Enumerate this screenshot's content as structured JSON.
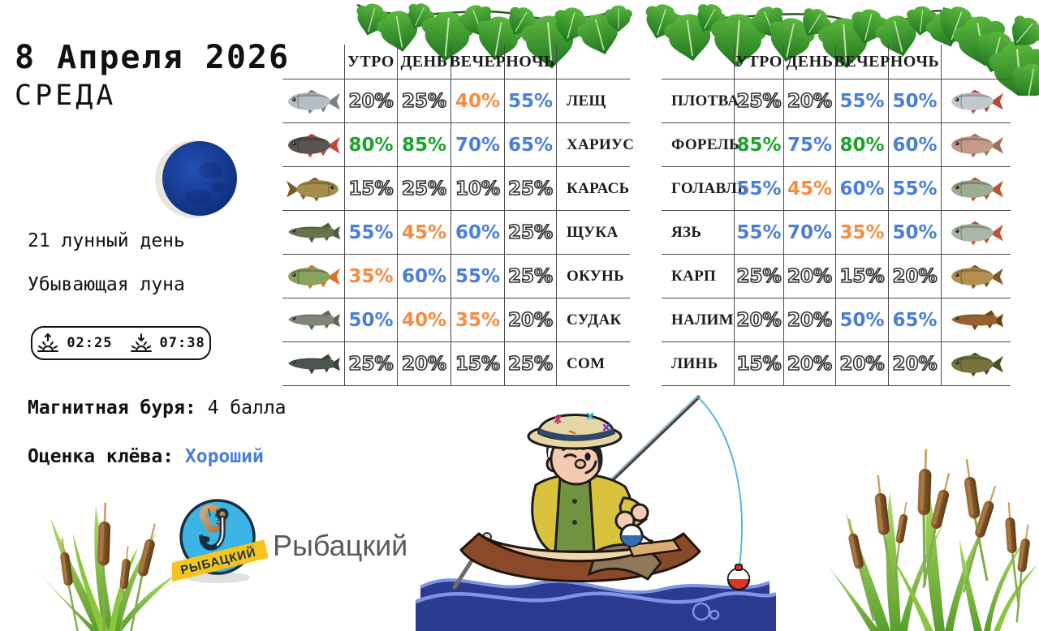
{
  "header": {
    "date": "8 Апреля 2026",
    "weekday": "СРЕДА"
  },
  "moon": {
    "lunar_day": "21 лунный день",
    "phase": "Убывающая луна",
    "rise_time": "02:25",
    "set_time": "07:38",
    "rise_icon": "sunrise-arrow-up-icon",
    "set_icon": "sunset-arrow-down-icon",
    "moon_color": "#123c96"
  },
  "info": {
    "storm_label": "Магнитная буря:",
    "storm_value": "4 балла",
    "bite_label": "Оценка клёва:",
    "bite_value": "Хороший"
  },
  "brand": {
    "name": "Рыбацкий",
    "badge_text": "РЫБАЦКИЙ",
    "badge_blue": "#3cb4e5",
    "badge_yellow": "#f6c41c"
  },
  "colors": {
    "high": "#1ca32c",
    "mid": "#4b7ed9",
    "low": "#f78b42",
    "poor_outline": "#333333"
  },
  "tables": {
    "time_headers": [
      "УТРО",
      "ДЕНЬ",
      "ВЕЧЕР",
      "НОЧЬ"
    ],
    "time_keys": [
      "morning",
      "day",
      "evening",
      "night"
    ],
    "left": [
      {
        "fish": "ЛЕЩ",
        "values": [
          20,
          25,
          40,
          55
        ],
        "type": "std",
        "body": "#b6bec5",
        "fin": "#77828a",
        "flip": false
      },
      {
        "fish": "ХАРИУС",
        "values": [
          80,
          85,
          70,
          65
        ],
        "type": "std",
        "body": "#5a5550",
        "fin": "#c9473a",
        "flip": false
      },
      {
        "fish": "КАРАСЬ",
        "values": [
          15,
          25,
          10,
          25
        ],
        "type": "std",
        "body": "#a38d4a",
        "fin": "#7a5a28",
        "flip": true
      },
      {
        "fish": "ЩУКА",
        "values": [
          55,
          45,
          60,
          25
        ],
        "type": "long",
        "body": "#66734c",
        "fin": "#4e5a38",
        "flip": false
      },
      {
        "fish": "ОКУНЬ",
        "values": [
          35,
          60,
          55,
          25
        ],
        "type": "std",
        "body": "#89a35e",
        "fin": "#e06c2a",
        "flip": false
      },
      {
        "fish": "СУДАК",
        "values": [
          50,
          40,
          35,
          20
        ],
        "type": "long",
        "body": "#7e8678",
        "fin": "#5d655a",
        "flip": false
      },
      {
        "fish": "СОМ",
        "values": [
          25,
          20,
          15,
          25
        ],
        "type": "long",
        "body": "#4d564e",
        "fin": "#39413a",
        "flip": false
      }
    ],
    "right": [
      {
        "fish": "ПЛОТВА",
        "values": [
          25,
          20,
          55,
          50
        ],
        "type": "std",
        "body": "#c2c9cd",
        "fin": "#c04333",
        "flip": false
      },
      {
        "fish": "ФОРЕЛЬ",
        "values": [
          85,
          75,
          80,
          60
        ],
        "type": "std",
        "body": "#c59a88",
        "fin": "#9c6f5e",
        "flip": false
      },
      {
        "fish": "ГОЛАВЛЬ",
        "values": [
          55,
          45,
          60,
          55
        ],
        "type": "std",
        "body": "#9cab92",
        "fin": "#b8542f",
        "flip": false
      },
      {
        "fish": "ЯЗЬ",
        "values": [
          55,
          70,
          35,
          50
        ],
        "type": "std",
        "body": "#aab6a8",
        "fin": "#c2552f",
        "flip": false
      },
      {
        "fish": "КАРП",
        "values": [
          25,
          20,
          15,
          20
        ],
        "type": "std",
        "body": "#b3904f",
        "fin": "#7c5a26",
        "flip": false
      },
      {
        "fish": "НАЛИМ",
        "values": [
          20,
          20,
          50,
          65
        ],
        "type": "long",
        "body": "#96612f",
        "fin": "#6e4317",
        "flip": false
      },
      {
        "fish": "ЛИНЬ",
        "values": [
          15,
          20,
          20,
          20
        ],
        "type": "std",
        "body": "#75743c",
        "fin": "#4f4f24",
        "flip": false
      }
    ]
  },
  "decor": {
    "top": "ivy-vine-icon",
    "bottom_left": "cattails-icon",
    "bottom_right": "cattails-icon",
    "center": "fisherman-in-boat-icon",
    "moon": "waning-moon-icon",
    "logo": "anchor-hook-worm-icon"
  }
}
